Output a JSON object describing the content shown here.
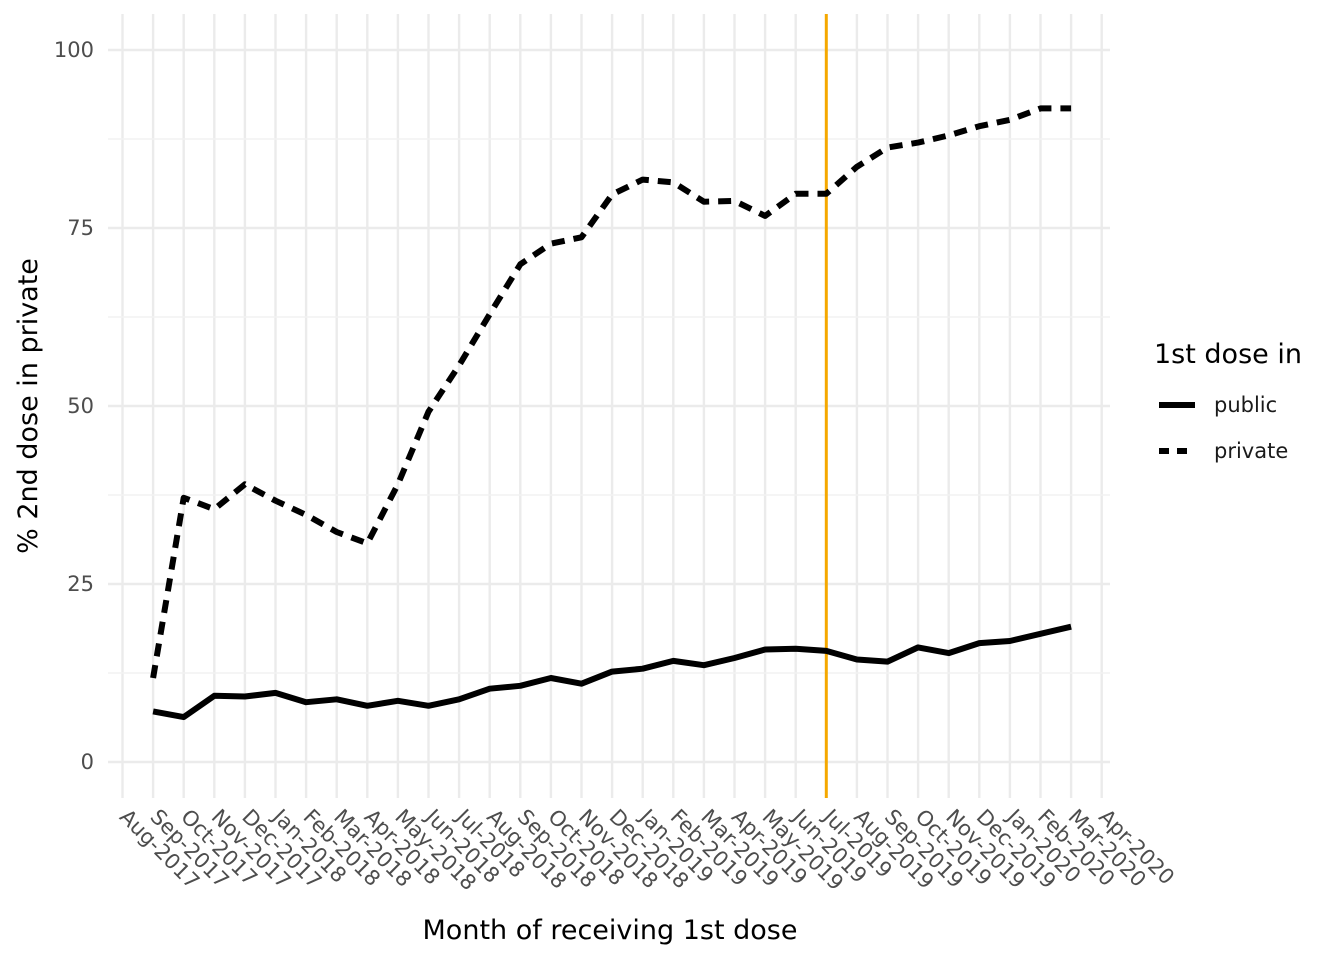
{
  "chart_data": {
    "type": "line",
    "title": "",
    "xlabel": "Month of receiving 1st dose",
    "ylabel": "% 2nd dose in private",
    "ylim": [
      -5,
      105
    ],
    "yticks": [
      0,
      25,
      50,
      75,
      100
    ],
    "grid": true,
    "legend": {
      "title": "1st dose in",
      "position": "right"
    },
    "categories": [
      "Aug-2017",
      "Sep-2017",
      "Oct-2017",
      "Nov-2017",
      "Dec-2017",
      "Jan-2018",
      "Feb-2018",
      "Mar-2018",
      "Apr-2018",
      "May-2018",
      "Jun-2018",
      "Jul-2018",
      "Aug-2018",
      "Sep-2018",
      "Oct-2018",
      "Nov-2018",
      "Dec-2018",
      "Jan-2019",
      "Feb-2019",
      "Mar-2019",
      "Apr-2019",
      "May-2019",
      "Jun-2019",
      "Jul-2019",
      "Aug-2019",
      "Sep-2019",
      "Oct-2019",
      "Nov-2019",
      "Dec-2019",
      "Jan-2020",
      "Feb-2020",
      "Mar-2020",
      "Apr-2020"
    ],
    "vline": {
      "at": "Jul-2019",
      "color": "#F5A800"
    },
    "series": [
      {
        "name": "public",
        "line_style": "solid",
        "color": "#000000",
        "values": [
          null,
          7.1,
          6.3,
          9.3,
          9.2,
          9.7,
          8.4,
          8.8,
          7.9,
          8.6,
          7.9,
          8.8,
          10.3,
          10.7,
          11.8,
          11.0,
          12.7,
          13.1,
          14.2,
          13.6,
          14.6,
          15.8,
          15.9,
          15.6,
          14.4,
          14.1,
          16.1,
          15.3,
          16.7,
          17.0,
          18.0,
          19.0,
          null
        ]
      },
      {
        "name": "private",
        "line_style": "dashed",
        "color": "#000000",
        "values": [
          null,
          11.8,
          37.1,
          35.5,
          39.0,
          36.7,
          34.7,
          32.3,
          30.7,
          39.0,
          49.2,
          55.7,
          62.9,
          69.9,
          72.8,
          73.7,
          79.7,
          81.8,
          81.4,
          78.7,
          78.8,
          76.7,
          79.8,
          79.8,
          83.6,
          86.3,
          87.0,
          88.0,
          89.3,
          90.2,
          91.8,
          91.8,
          null
        ]
      }
    ]
  }
}
